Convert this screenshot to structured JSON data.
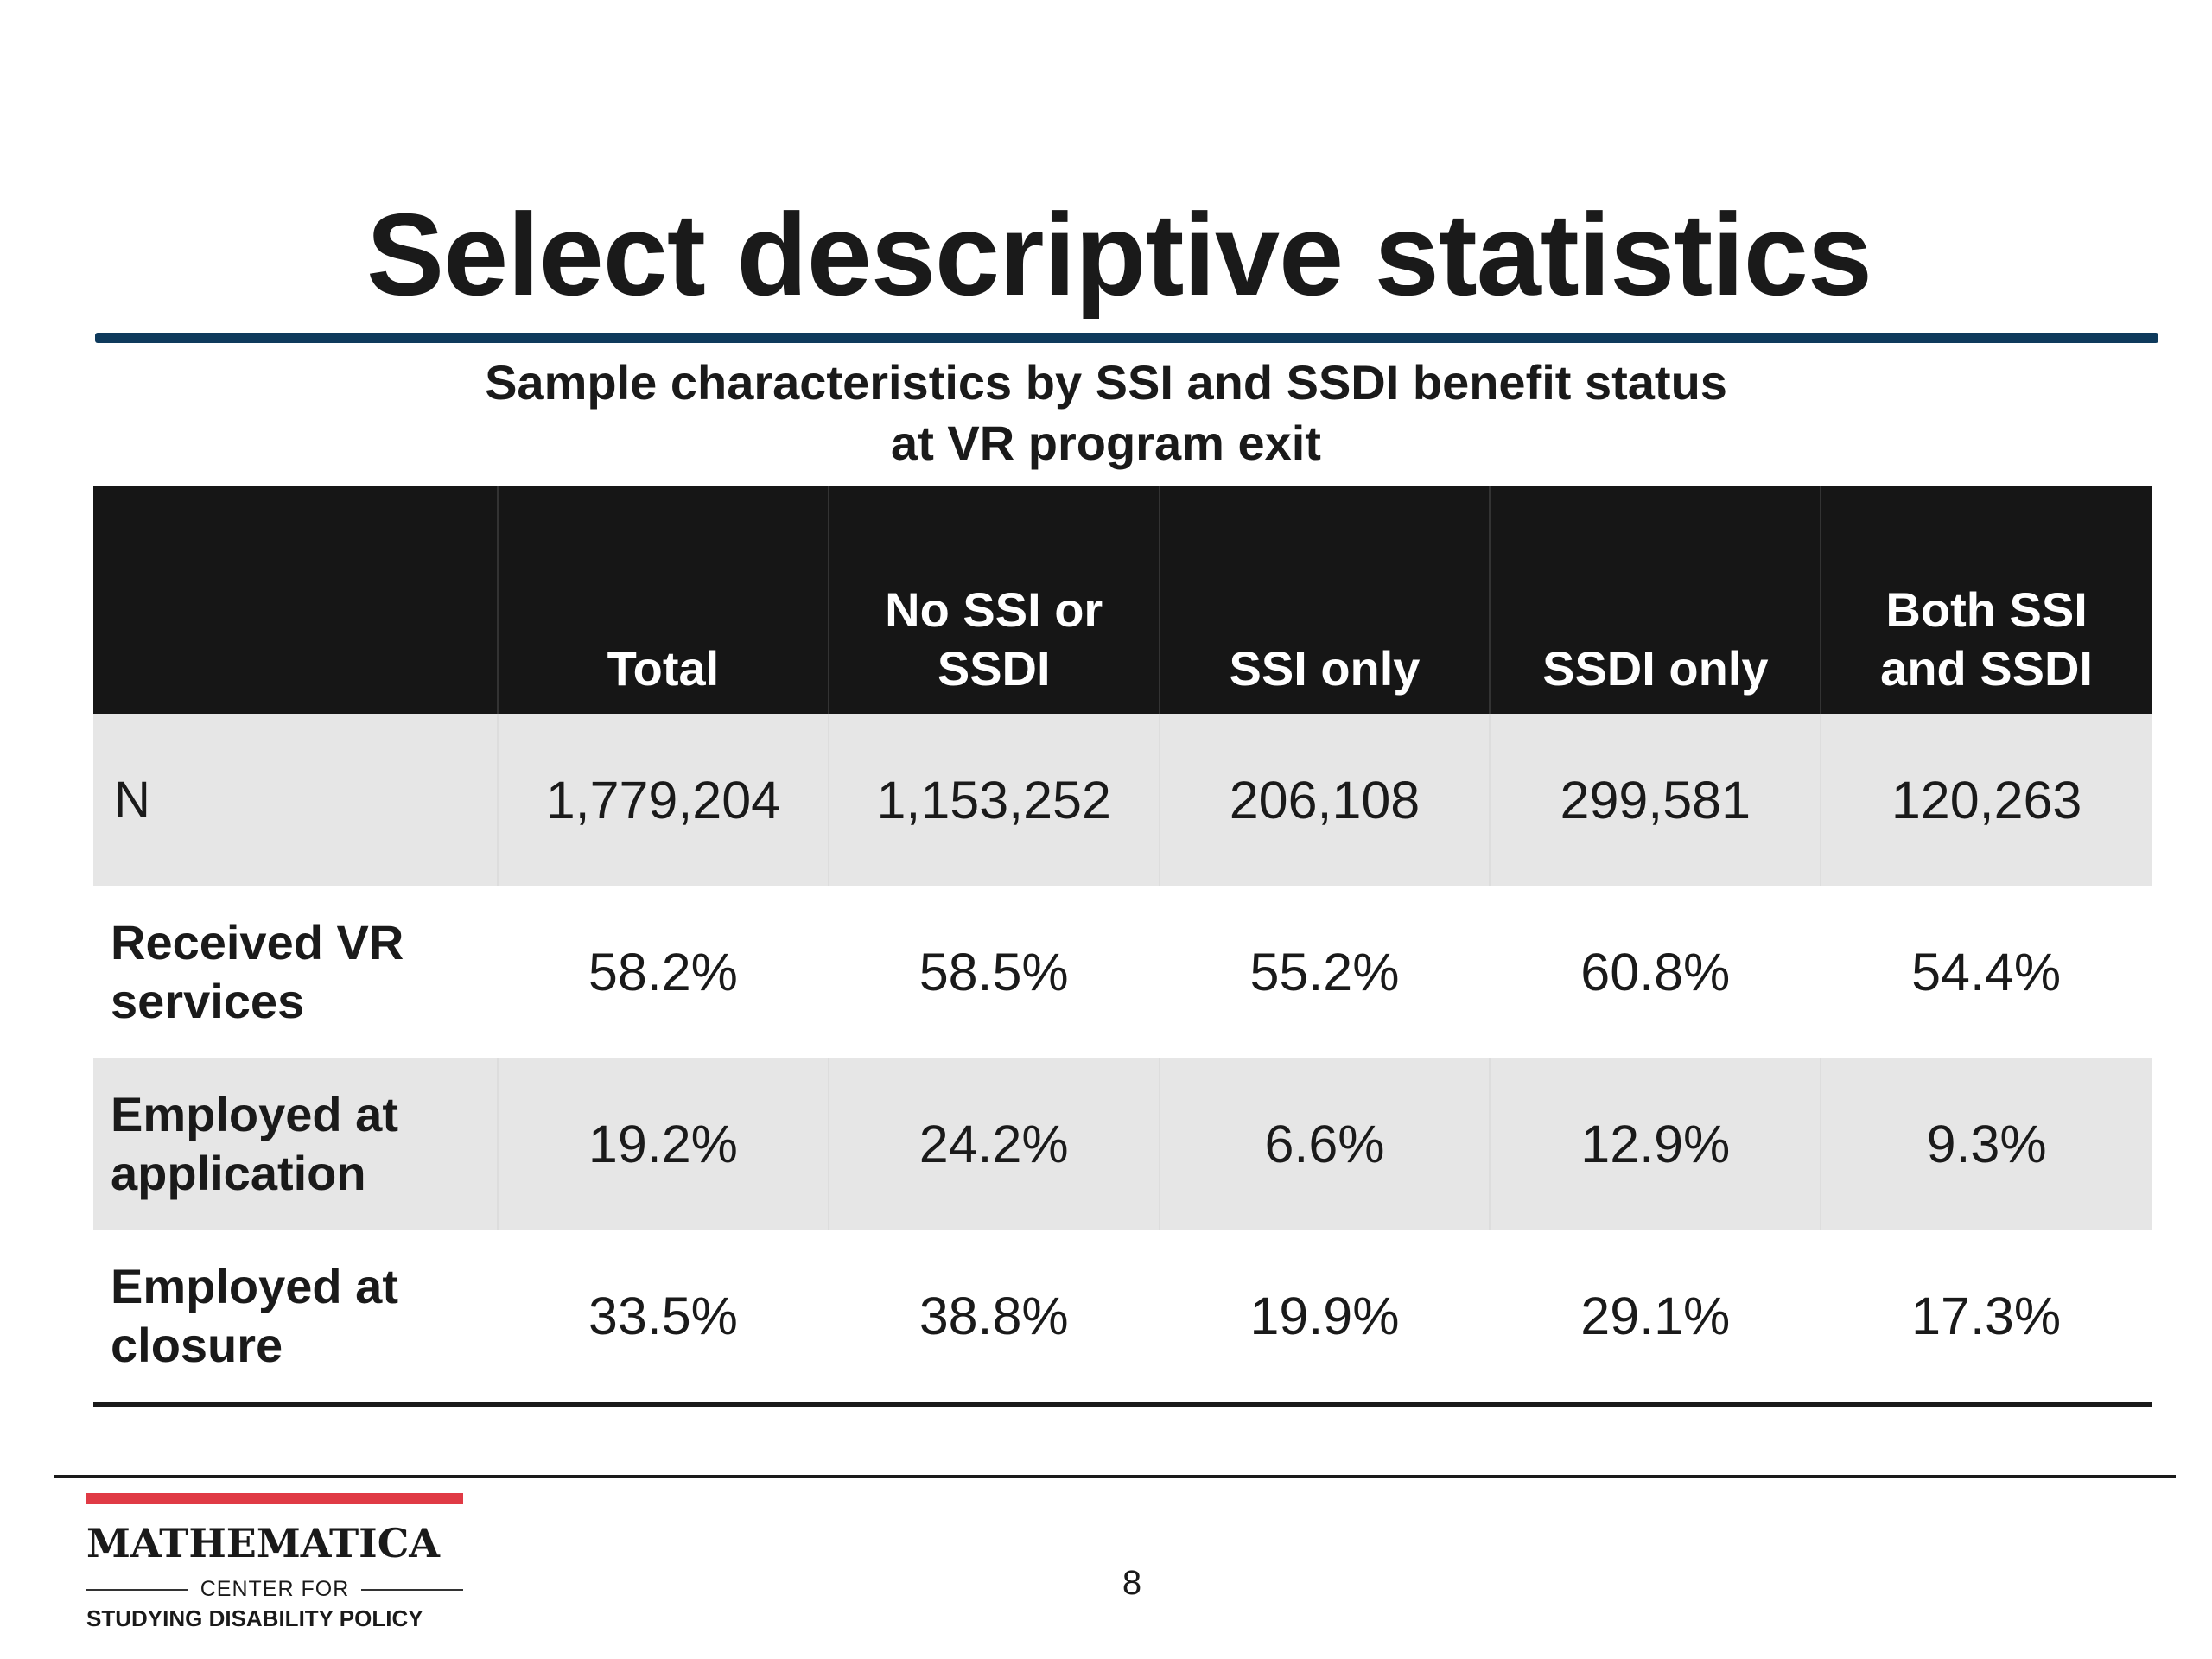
{
  "slide": {
    "title": "Select descriptive statistics",
    "page_number": "8"
  },
  "table": {
    "caption_lines": [
      "Sample characteristics by SSI and SSDI benefit status",
      "at VR program exit"
    ],
    "columns": [
      {
        "lines": [
          ""
        ]
      },
      {
        "lines": [
          "Total"
        ]
      },
      {
        "lines": [
          "No SSI or",
          "SSDI"
        ]
      },
      {
        "lines": [
          "SSI only"
        ]
      },
      {
        "lines": [
          "SSDI only"
        ]
      },
      {
        "lines": [
          "Both SSI",
          "and SSDI"
        ]
      }
    ],
    "rows": [
      {
        "label_lines": [
          "N"
        ],
        "values": [
          "1,779,204",
          "1,153,252",
          "206,108",
          "299,581",
          "120,263"
        ]
      },
      {
        "label_lines": [
          "Received VR",
          "services"
        ],
        "values": [
          "58.2%",
          "58.5%",
          "55.2%",
          "60.8%",
          "54.4%"
        ]
      },
      {
        "label_lines": [
          "Employed at",
          "application"
        ],
        "values": [
          "19.2%",
          "24.2%",
          "6.6%",
          "12.9%",
          "9.3%"
        ]
      },
      {
        "label_lines": [
          "Employed at",
          "closure"
        ],
        "values": [
          "33.5%",
          "38.8%",
          "19.9%",
          "29.1%",
          "17.3%"
        ]
      }
    ]
  },
  "logo": {
    "name": "MATHEMATICA",
    "center_text": "CENTER FOR",
    "sub_text": "STUDYING DISABILITY POLICY",
    "accent_color": "#e03a45"
  },
  "colors": {
    "title_rule": "#0e3a5c",
    "header_bg": "#161616",
    "shaded_row": "#e6e6e6"
  }
}
